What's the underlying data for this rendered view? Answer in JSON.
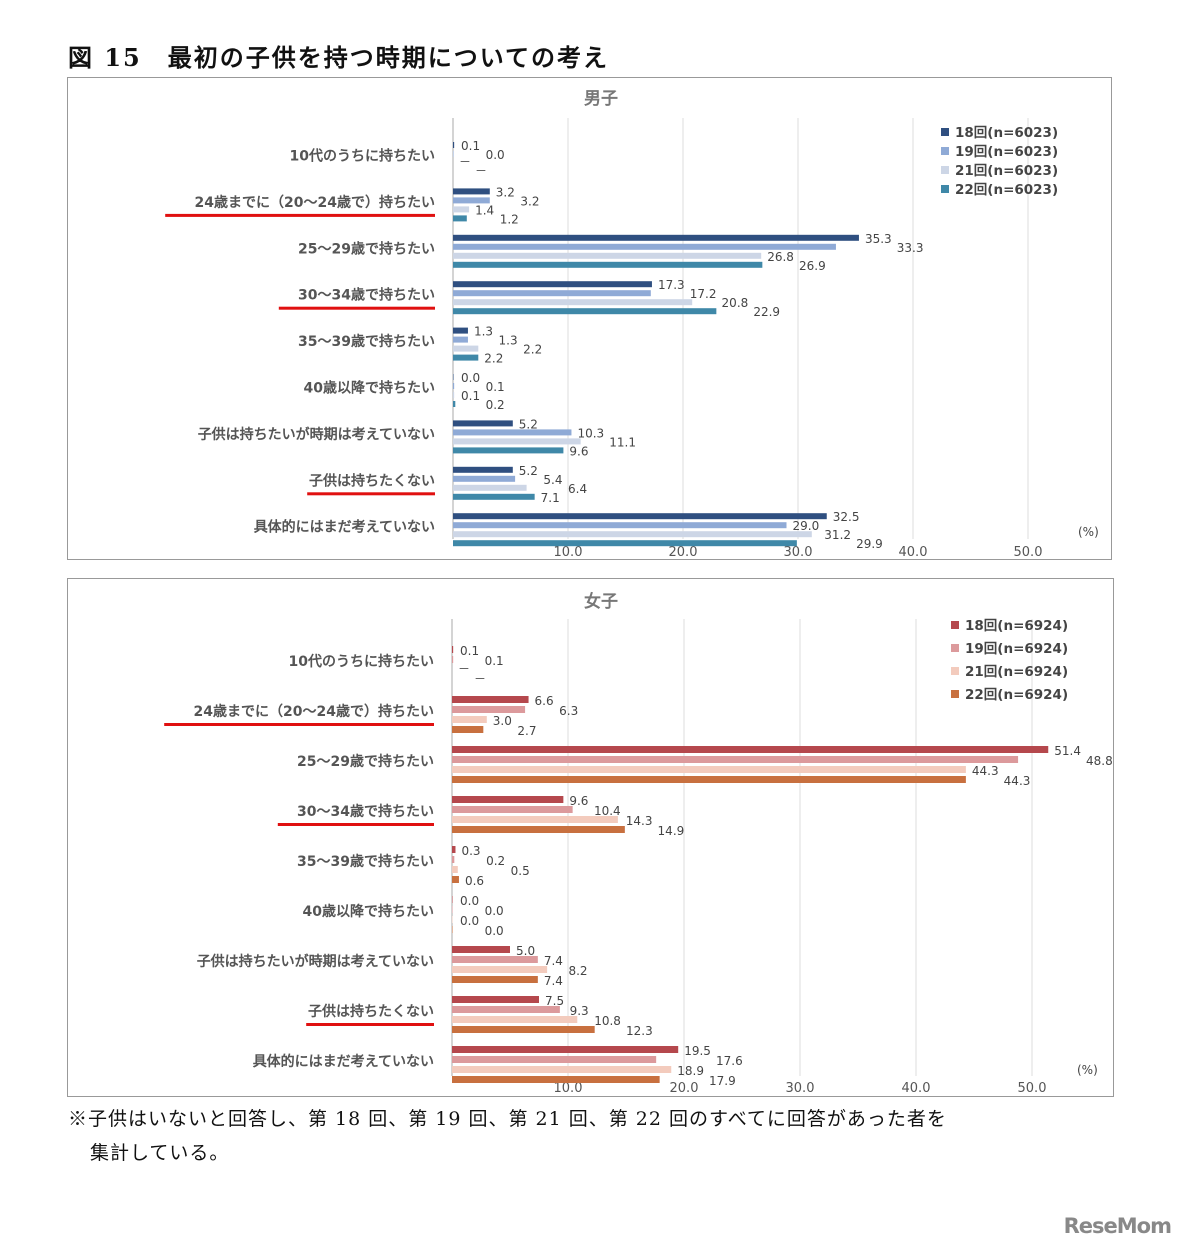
{
  "figure_title": "図 15　最初の子供を持つ時期についての考え",
  "note_lines": [
    "※子供はいないと回答し、第 18 回、第 19 回、第 21 回、第 22 回のすべてに回答があった者を",
    "集計している。"
  ],
  "watermark": "ReseMom",
  "chart_data": [
    {
      "type": "bar",
      "orientation": "horizontal",
      "title": "男子",
      "unit_label": "(%)",
      "missing_label": "－",
      "categories": [
        "10代のうちに持ちたい",
        "24歳までに（20～24歳で）持ちたい",
        "25～29歳で持ちたい",
        "30～34歳で持ちたい",
        "35～39歳で持ちたい",
        "40歳以降で持ちたい",
        "子供は持ちたいが時期は考えていない",
        "子供は持ちたくない",
        "具体的にはまだ考えていない"
      ],
      "highlighted": [
        1,
        3,
        7
      ],
      "highlight_color": "#e01010",
      "xlim": [
        0,
        50
      ],
      "xticks": [
        "10.0",
        "20.0",
        "30.0",
        "40.0",
        "50.0"
      ],
      "legend": "top-right",
      "grid": true,
      "series": [
        {
          "name": "18回(n=6023)",
          "color": "#2f4f80",
          "values": [
            0.1,
            3.2,
            35.3,
            17.3,
            1.3,
            0.0,
            5.2,
            5.2,
            32.5
          ]
        },
        {
          "name": "19回(n=6023)",
          "color": "#8faad6",
          "values": [
            0.0,
            3.2,
            33.3,
            17.2,
            1.3,
            0.1,
            10.3,
            5.4,
            29.0
          ]
        },
        {
          "name": "21回(n=6023)",
          "color": "#cdd6e6",
          "values": [
            null,
            1.4,
            26.8,
            20.8,
            2.2,
            0.1,
            11.1,
            6.4,
            31.2
          ]
        },
        {
          "name": "22回(n=6023)",
          "color": "#3f88a8",
          "values": [
            null,
            1.2,
            26.9,
            22.9,
            2.2,
            0.2,
            9.6,
            7.1,
            29.9
          ]
        }
      ]
    },
    {
      "type": "bar",
      "orientation": "horizontal",
      "title": "女子",
      "unit_label": "(%)",
      "missing_label": "－",
      "categories": [
        "10代のうちに持ちたい",
        "24歳までに（20～24歳で）持ちたい",
        "25～29歳で持ちたい",
        "30～34歳で持ちたい",
        "35～39歳で持ちたい",
        "40歳以降で持ちたい",
        "子供は持ちたいが時期は考えていない",
        "子供は持ちたくない",
        "具体的にはまだ考えていない"
      ],
      "highlighted": [
        1,
        3,
        7
      ],
      "highlight_color": "#e01010",
      "xlim": [
        0,
        50
      ],
      "xticks": [
        "10.0",
        "20.0",
        "30.0",
        "40.0",
        "50.0"
      ],
      "legend": "top-right",
      "grid": true,
      "series": [
        {
          "name": "18回(n=6924)",
          "color": "#b5484d",
          "values": [
            0.1,
            6.6,
            51.4,
            9.6,
            0.3,
            0.0,
            5.0,
            7.5,
            19.5
          ]
        },
        {
          "name": "19回(n=6924)",
          "color": "#dc9a9c",
          "values": [
            0.1,
            6.3,
            48.8,
            10.4,
            0.2,
            0.0,
            7.4,
            9.3,
            17.6
          ]
        },
        {
          "name": "21回(n=6924)",
          "color": "#f3cbbd",
          "values": [
            null,
            3.0,
            44.3,
            14.3,
            0.5,
            0.0,
            8.2,
            10.8,
            18.9
          ]
        },
        {
          "name": "22回(n=6924)",
          "color": "#c8703f",
          "values": [
            null,
            2.7,
            44.3,
            14.9,
            0.6,
            0.0,
            7.4,
            12.3,
            17.9
          ]
        }
      ]
    }
  ]
}
